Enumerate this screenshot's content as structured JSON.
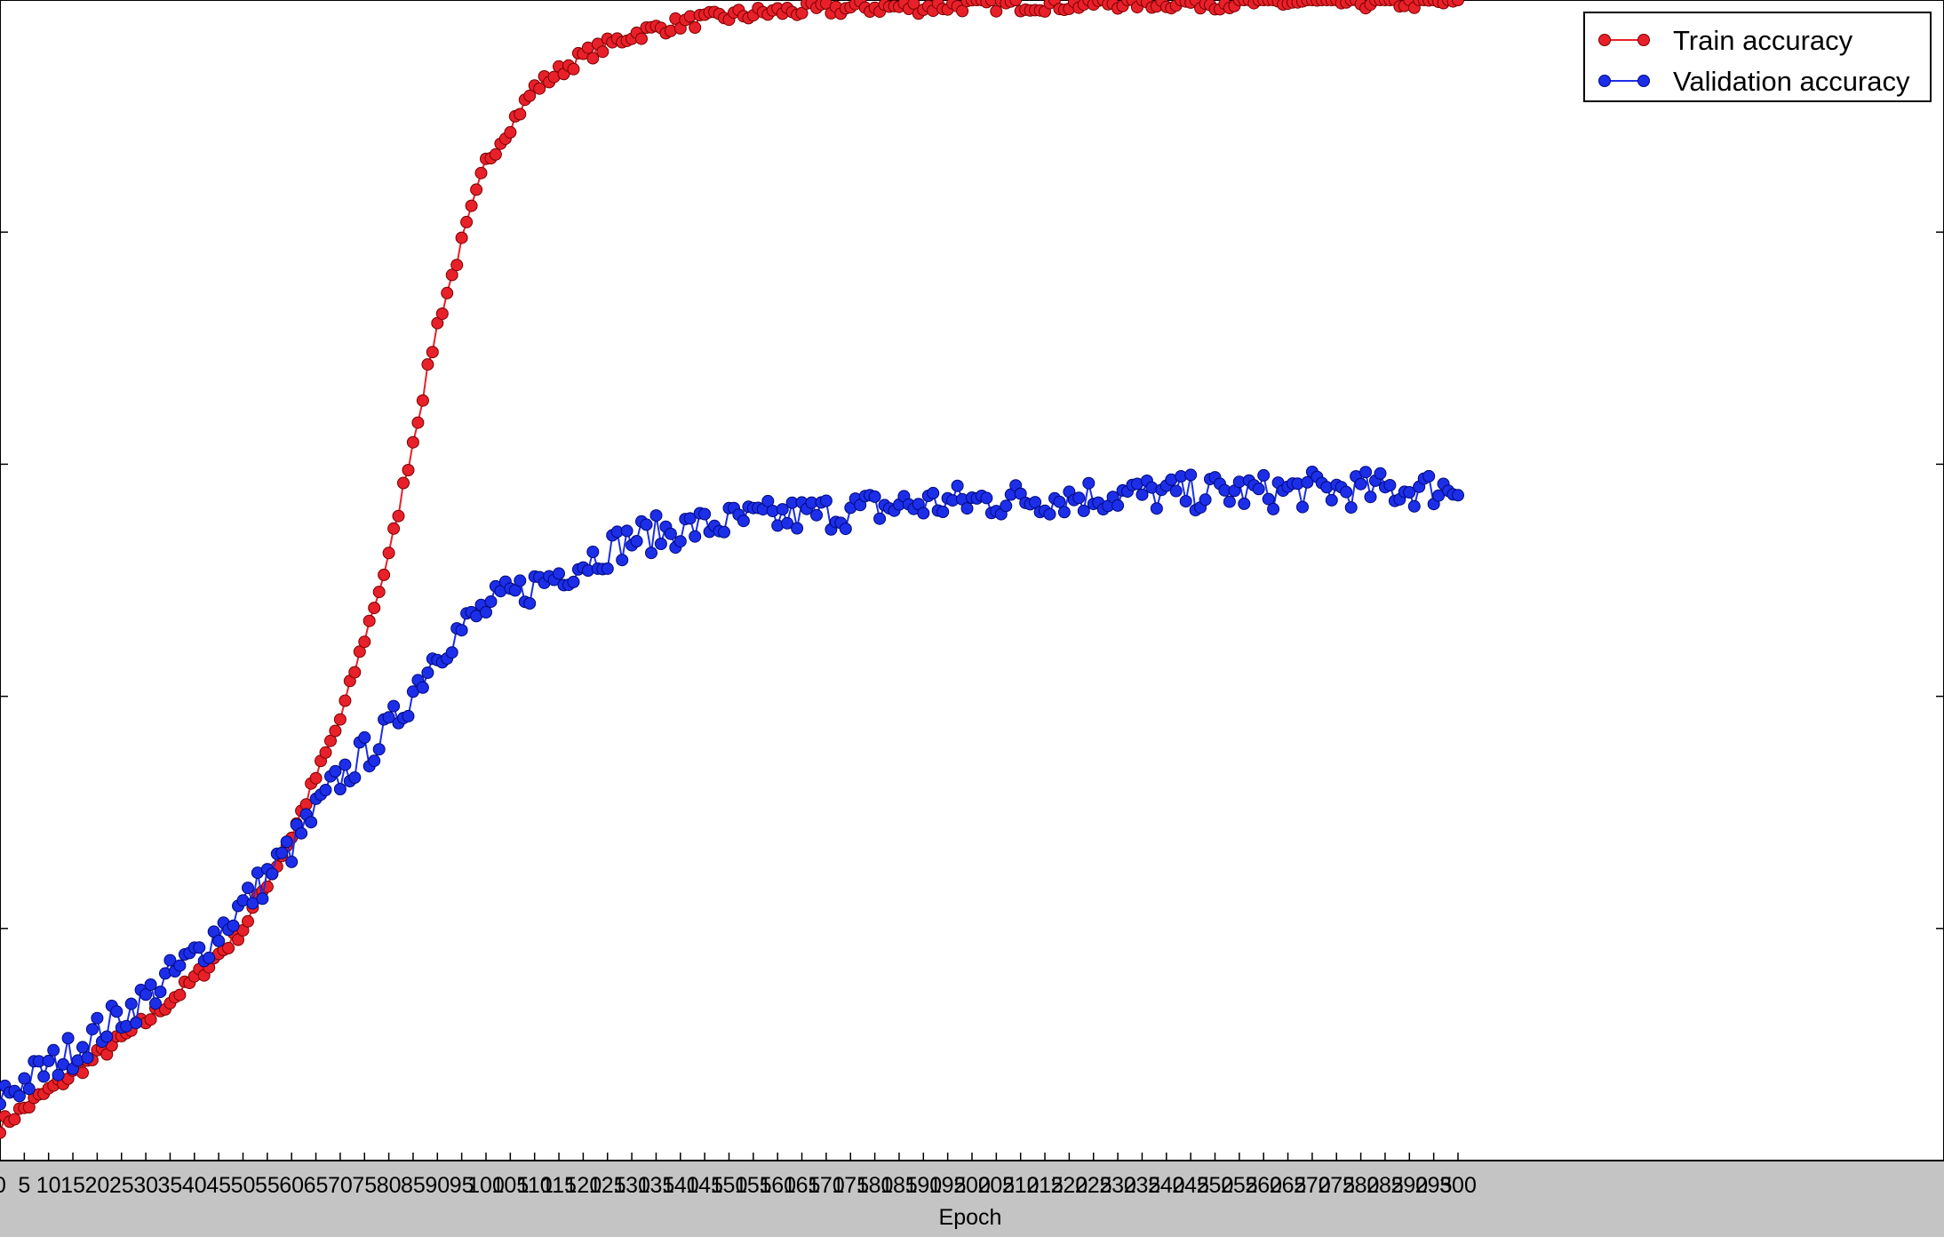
{
  "chart_data": {
    "type": "line",
    "xlabel": "Epoch",
    "ylabel": "",
    "title": "",
    "xlim": [
      0,
      400
    ],
    "ylim": [
      0.5,
      1.0
    ],
    "grid": false,
    "legend_position": "top-right",
    "x_ticks": [
      0,
      5,
      10,
      15,
      20,
      25,
      30,
      35,
      40,
      45,
      50,
      55,
      60,
      65,
      70,
      75,
      80,
      85,
      90,
      95,
      100,
      105,
      110,
      115,
      120,
      125,
      130,
      135,
      140,
      145,
      150,
      155,
      160,
      165,
      170,
      175,
      180,
      185,
      190,
      195,
      200,
      205,
      210,
      215,
      220,
      225,
      230,
      235,
      240,
      245,
      250,
      255,
      260,
      265,
      270,
      275,
      280,
      285,
      290,
      295,
      300
    ],
    "x_tick_labels": [
      "0",
      "5",
      "10",
      "15",
      "20",
      "25",
      "30",
      "35",
      "40",
      "45",
      "50",
      "55",
      "60",
      "65",
      "70",
      "75",
      "80",
      "85",
      "90",
      "95",
      "100",
      "105",
      "110",
      "115",
      "120",
      "125",
      "130",
      "135",
      "140",
      "145",
      "150",
      "155",
      "160",
      "165",
      "170",
      "175",
      "180",
      "185",
      "190",
      "195",
      "200",
      "205",
      "210",
      "215",
      "220",
      "225",
      "230",
      "235",
      "240",
      "245",
      "250",
      "255",
      "260",
      "265",
      "270",
      "275",
      "280",
      "285",
      "290",
      "295",
      "300"
    ],
    "series": [
      {
        "name": "Train accuracy",
        "color": "#e8202a",
        "marker": "circle",
        "x": [
          0,
          10,
          20,
          30,
          40,
          50,
          60,
          70,
          80,
          90,
          100,
          110,
          120,
          130,
          140,
          150,
          160,
          170,
          180,
          190,
          200,
          210,
          220,
          230,
          240,
          250,
          260,
          270,
          280,
          290,
          300
        ],
        "y": [
          0.515,
          0.53,
          0.545,
          0.56,
          0.578,
          0.6,
          0.64,
          0.69,
          0.76,
          0.86,
          0.93,
          0.962,
          0.976,
          0.985,
          0.99,
          0.993,
          0.995,
          0.996,
          0.997,
          0.997,
          0.998,
          0.998,
          0.998,
          0.999,
          0.999,
          0.999,
          0.999,
          0.999,
          0.999,
          0.999,
          0.999
        ]
      },
      {
        "name": "Validation accuracy",
        "color": "#1c2ee8",
        "marker": "circle",
        "x": [
          0,
          10,
          20,
          30,
          40,
          50,
          60,
          70,
          80,
          90,
          100,
          110,
          120,
          130,
          140,
          150,
          160,
          170,
          180,
          190,
          200,
          210,
          220,
          230,
          240,
          250,
          260,
          270,
          280,
          290,
          300
        ],
        "y": [
          0.528,
          0.54,
          0.555,
          0.57,
          0.588,
          0.61,
          0.635,
          0.665,
          0.685,
          0.72,
          0.738,
          0.748,
          0.758,
          0.768,
          0.772,
          0.775,
          0.777,
          0.779,
          0.781,
          0.783,
          0.784,
          0.785,
          0.786,
          0.787,
          0.787,
          0.788,
          0.788,
          0.789,
          0.789,
          0.789,
          0.79
        ]
      }
    ]
  }
}
